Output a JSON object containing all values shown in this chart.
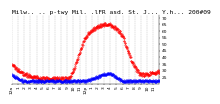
{
  "title": "Milw.. .. p-twy Mil. .lFR asd. St. J... Y.h... 200#09",
  "temp_color": "#ff0000",
  "dew_color": "#0000ff",
  "background_color": "#ffffff",
  "grid_color": "#888888",
  "ylim": [
    20,
    72
  ],
  "yticks": [
    25,
    30,
    35,
    40,
    45,
    50,
    55,
    60,
    65,
    70
  ],
  "ytick_labels": [
    "25",
    "30",
    "35",
    "40",
    "45",
    "50",
    "55",
    "60",
    "65",
    "70"
  ],
  "num_xticks": 24,
  "xtick_labels": [
    "12a",
    "1",
    "2",
    "3",
    "4",
    "5",
    "6",
    "7",
    "8",
    "9",
    "10",
    "11",
    "12p",
    "1",
    "2",
    "3",
    "4",
    "5",
    "6",
    "7",
    "8",
    "9",
    "10",
    "11"
  ],
  "title_fontsize": 4.5,
  "tick_fontsize": 3.2,
  "temp_profile": [
    35,
    34,
    33,
    32,
    32,
    31,
    30,
    30,
    29,
    29,
    28,
    28,
    28,
    27,
    27,
    27,
    27,
    26,
    26,
    26,
    26,
    25,
    25,
    25,
    25,
    25,
    25,
    25,
    24,
    24,
    24,
    24,
    24,
    24,
    24,
    24,
    24,
    24,
    24,
    24,
    24,
    24,
    24,
    24,
    24,
    24,
    24,
    24,
    24,
    24,
    24,
    24,
    24,
    24,
    24,
    24,
    24,
    24,
    24,
    24,
    24,
    25,
    25,
    26,
    27,
    28,
    30,
    32,
    34,
    36,
    38,
    40,
    42,
    44,
    46,
    48,
    50,
    52,
    54,
    55,
    56,
    57,
    58,
    59,
    59,
    60,
    60,
    61,
    61,
    62,
    62,
    63,
    63,
    63,
    64,
    64,
    64,
    64,
    65,
    65,
    65,
    65,
    65,
    65,
    65,
    65,
    65,
    64,
    64,
    64,
    63,
    63,
    62,
    62,
    61,
    60,
    59,
    58,
    57,
    56,
    55,
    53,
    51,
    49,
    47,
    45,
    43,
    41,
    39,
    37,
    36,
    34,
    33,
    32,
    31,
    30,
    29,
    28,
    27,
    27,
    27,
    27,
    27,
    27,
    27,
    27,
    27,
    27,
    27,
    28,
    28,
    28,
    28,
    28,
    28,
    28,
    29,
    29,
    29,
    29
  ],
  "dew_profile": [
    27,
    26,
    26,
    25,
    25,
    25,
    24,
    24,
    23,
    23,
    23,
    22,
    22,
    22,
    22,
    22,
    22,
    22,
    22,
    22,
    22,
    22,
    22,
    22,
    22,
    22,
    22,
    22,
    22,
    22,
    22,
    22,
    22,
    22,
    22,
    22,
    22,
    22,
    22,
    22,
    22,
    22,
    22,
    22,
    22,
    22,
    22,
    22,
    22,
    22,
    22,
    22,
    22,
    22,
    22,
    22,
    22,
    22,
    22,
    22,
    22,
    22,
    22,
    22,
    22,
    22,
    22,
    22,
    22,
    22,
    22,
    22,
    22,
    22,
    22,
    22,
    22,
    22,
    22,
    22,
    22,
    23,
    23,
    23,
    23,
    23,
    24,
    24,
    24,
    24,
    25,
    25,
    25,
    25,
    26,
    26,
    26,
    27,
    27,
    27,
    27,
    27,
    27,
    28,
    28,
    28,
    28,
    27,
    27,
    27,
    26,
    26,
    25,
    25,
    24,
    24,
    23,
    23,
    22,
    22,
    22,
    22,
    22,
    22,
    22,
    22,
    22,
    22,
    22,
    22,
    22,
    22,
    22,
    22,
    22,
    22,
    22,
    22,
    22,
    22,
    22,
    22,
    22,
    22,
    22,
    22,
    22,
    22,
    22,
    22,
    22,
    22,
    22,
    22,
    22,
    22,
    22,
    22,
    22,
    22
  ]
}
